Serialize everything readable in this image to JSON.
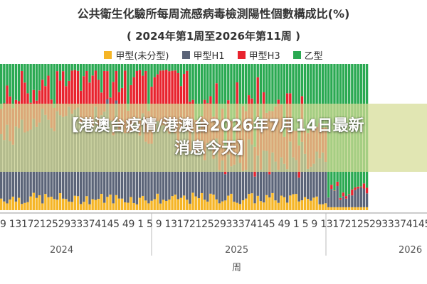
{
  "chart_data": {
    "type": "bar",
    "stacked": true,
    "title": "公共衛生化驗所每周流感病毒檢測陽性個數構成比(%)",
    "subtitle": "( 2024年第1周至2026年第11周 )",
    "xlabel": "周",
    "ylabel": "",
    "ylim": [
      0,
      100
    ],
    "grid": false,
    "legend_position": "top",
    "series": [
      {
        "name": "甲型(未分型)",
        "color": "#f5b526"
      },
      {
        "name": "甲型H1",
        "color": "#5b6478"
      },
      {
        "name": "甲型H3",
        "color": "#e8232e"
      },
      {
        "name": "乙型",
        "color": "#2aa952"
      }
    ],
    "week_tick_text": "9 131721252933374145 49 1 5 9 131721252933374145 49 1 5 9 1317212529333741454 9 1 5 9 131721252933",
    "year_labels": [
      {
        "text": "2024"
      },
      {
        "text": "2025"
      },
      {
        "text": "2026"
      }
    ]
  },
  "banner": {
    "text": "【港澳台疫情/港澳台2026年7月14日最新消息今天】"
  },
  "colors": {
    "yellow": "#f5b526",
    "slate": "#5b6478",
    "red": "#e8232e",
    "green": "#2aa952"
  }
}
